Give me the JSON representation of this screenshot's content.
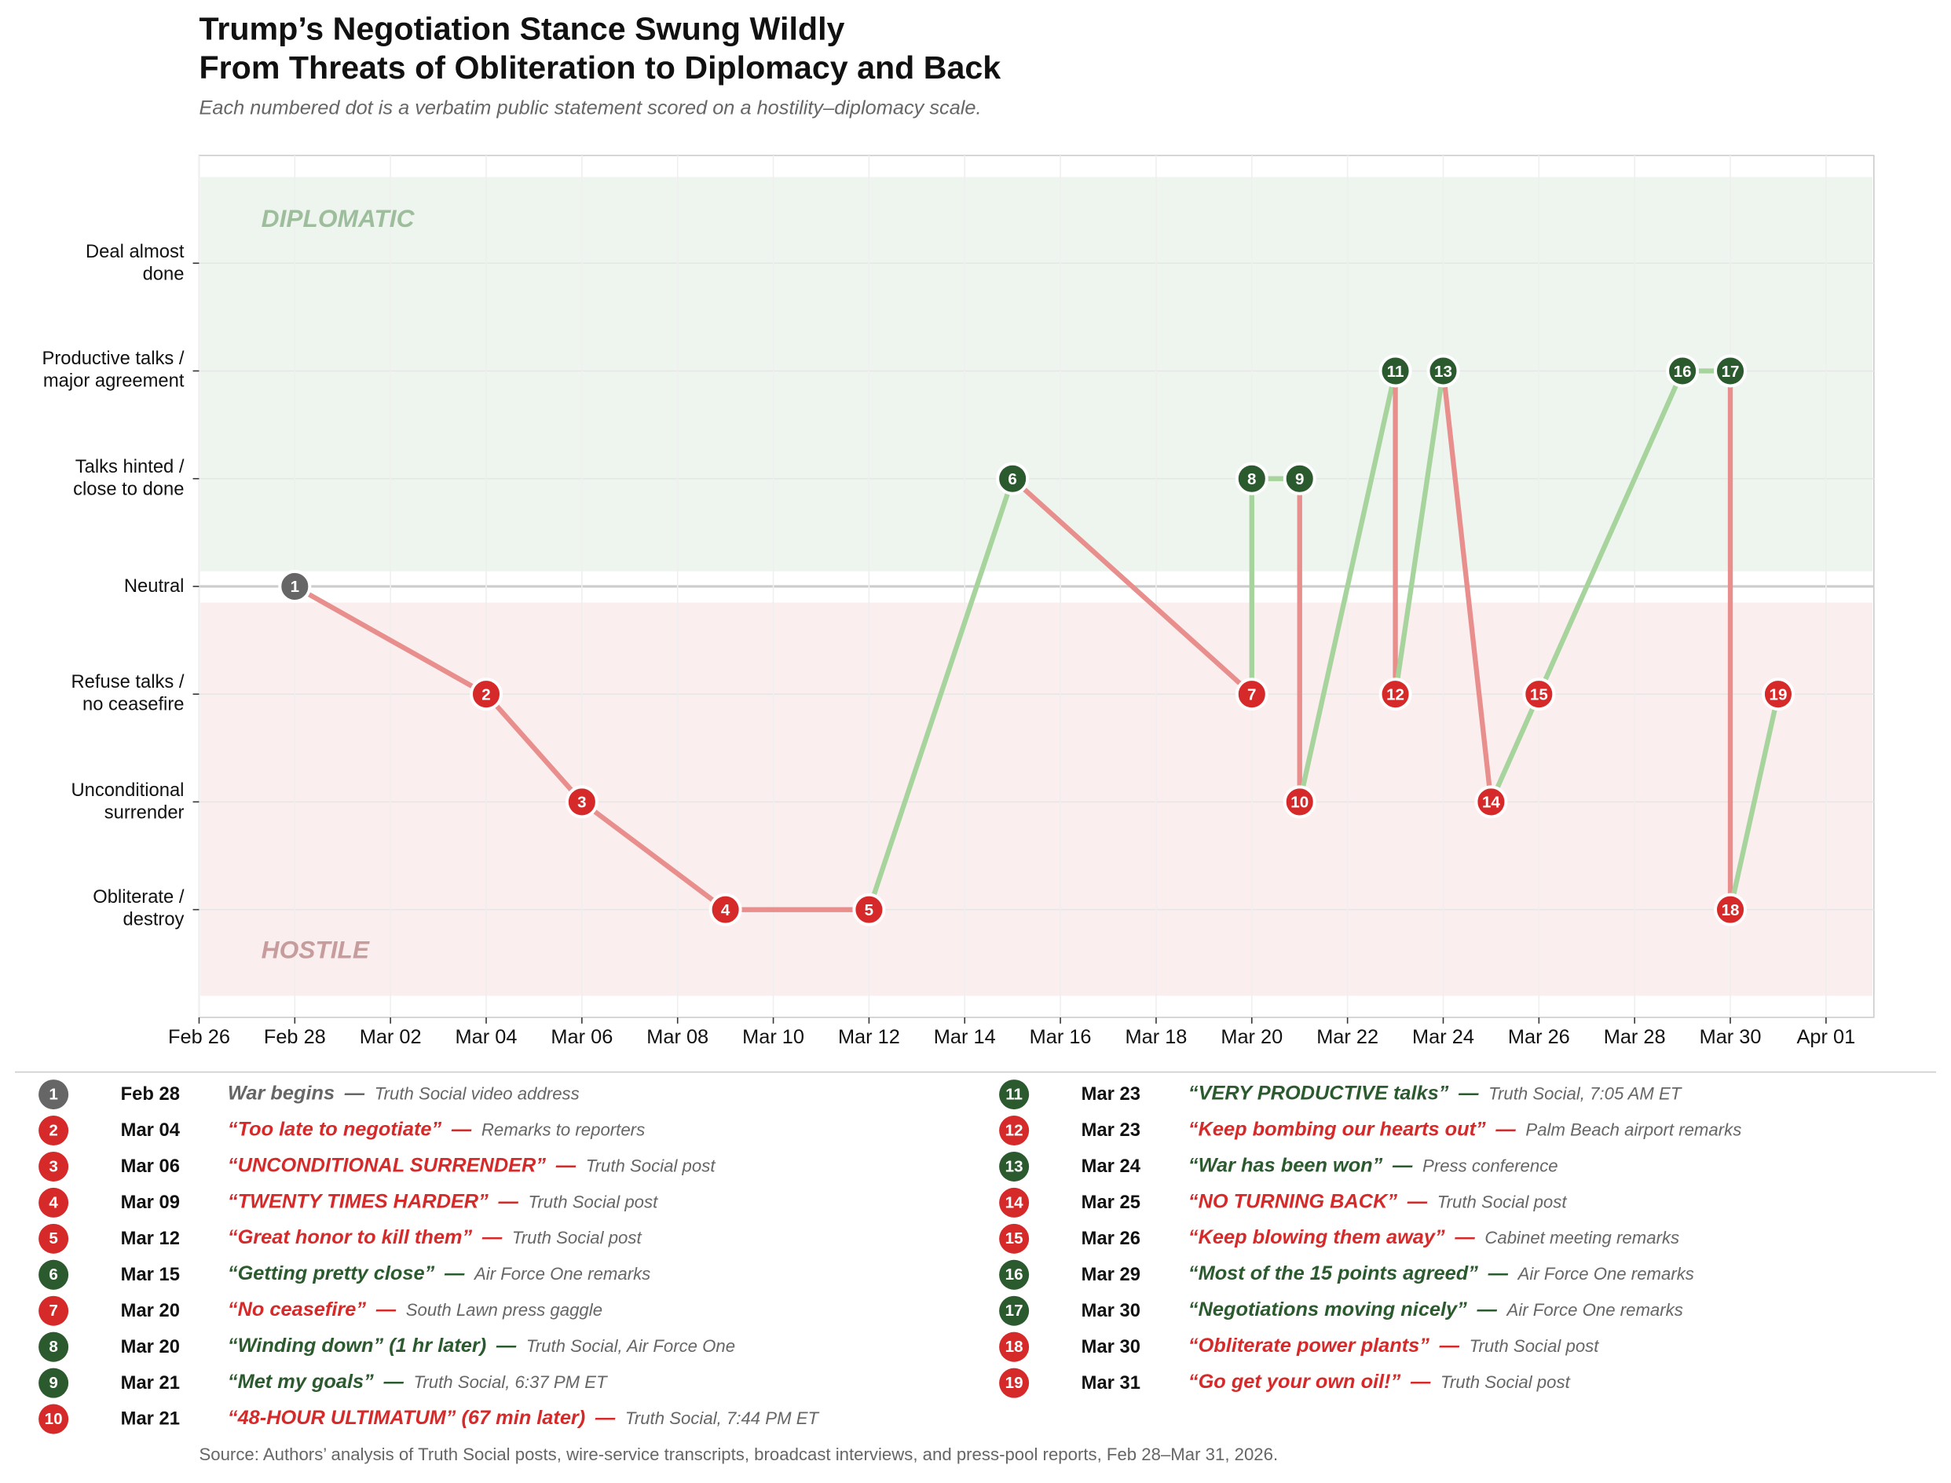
{
  "chart_data": {
    "type": "line",
    "title": "Trump’s Negotiation Stance Swung Wildly\nFrom Threats of Obliteration to Diplomacy and Back",
    "subtitle": "Each numbered dot is a verbatim public statement scored on a hostility–diplomacy scale.",
    "source": "Source: Authors’ analysis of Truth Social posts, wire-service transcripts, broadcast interviews, and press-pool reports, Feb 28–Mar 31, 2026.",
    "x": [
      "Feb 28",
      "Mar 04",
      "Mar 06",
      "Mar 09",
      "Mar 12",
      "Mar 15",
      "Mar 20",
      "Mar 20",
      "Mar 21",
      "Mar 21",
      "Mar 23",
      "Mar 23",
      "Mar 24",
      "Mar 25",
      "Mar 26",
      "Mar 29",
      "Mar 30",
      "Mar 30",
      "Mar 31"
    ],
    "values": [
      0,
      -1,
      -2,
      -3,
      -3,
      1,
      -1,
      1,
      1,
      -2,
      2,
      -1,
      2,
      -2,
      -1,
      2,
      2,
      -3,
      -1
    ],
    "labels": [
      1,
      2,
      3,
      4,
      5,
      6,
      7,
      8,
      9,
      10,
      11,
      12,
      13,
      14,
      15,
      16,
      17,
      18,
      19
    ],
    "colors": [
      "#666666",
      "#d62a2a",
      "#d62a2a",
      "#d62a2a",
      "#d62a2a",
      "#2b5a2e",
      "#d62a2a",
      "#2b5a2e",
      "#2b5a2e",
      "#d62a2a",
      "#2b5a2e",
      "#d62a2a",
      "#2b5a2e",
      "#d62a2a",
      "#d62a2a",
      "#2b5a2e",
      "#2b5a2e",
      "#d62a2a",
      "#d62a2a"
    ],
    "rise_color": "#a6d49c",
    "fall_color": "#e88e8c",
    "xlim": [
      "Feb 26",
      "Apr 02"
    ],
    "xticks": [
      "Feb 26",
      "Feb 28",
      "Mar 02",
      "Mar 04",
      "Mar 06",
      "Mar 08",
      "Mar 10",
      "Mar 12",
      "Mar 14",
      "Mar 16",
      "Mar 18",
      "Mar 20",
      "Mar 22",
      "Mar 24",
      "Mar 26",
      "Mar 28",
      "Mar 30",
      "Apr 01"
    ],
    "ylim": [
      -4,
      4
    ],
    "yticks": [
      {
        "value": -3,
        "label": "Obliterate /\ndestroy"
      },
      {
        "value": -2,
        "label": "Unconditional\nsurrender"
      },
      {
        "value": -1,
        "label": "Refuse talks /\nno ceasefire"
      },
      {
        "value": 0,
        "label": "Neutral"
      },
      {
        "value": 1,
        "label": "Talks hinted /\nclose to done"
      },
      {
        "value": 2,
        "label": "Productive talks /\nmajor agreement"
      },
      {
        "value": 3,
        "label": "Deal almost\ndone"
      }
    ],
    "grid": true,
    "bands": [
      {
        "label": "DIPLOMATIC",
        "from": 0.14,
        "to": 3.8,
        "color": "#eef5ee",
        "label_color": "#9dbd9d"
      },
      {
        "label": "HOSTILE",
        "from": -3.8,
        "to": -0.15,
        "color": "#fbeeef",
        "label_color": "#c79c9c"
      }
    ],
    "separator": "—",
    "statements": [
      {
        "quote": "War begins",
        "source": "Truth Social video address"
      },
      {
        "quote": "“Too late to negotiate”",
        "source": "Remarks to reporters"
      },
      {
        "quote": "“UNCONDITIONAL SURRENDER”",
        "source": "Truth Social post"
      },
      {
        "quote": "“TWENTY TIMES HARDER”",
        "source": "Truth Social post"
      },
      {
        "quote": "“Great honor to kill them”",
        "source": "Truth Social post"
      },
      {
        "quote": "“Getting pretty close”",
        "source": "Air Force One remarks"
      },
      {
        "quote": "“No ceasefire”",
        "source": "South Lawn press gaggle"
      },
      {
        "quote": "“Winding down” (1 hr later)",
        "source": "Truth Social, Air Force One"
      },
      {
        "quote": "“Met my goals”",
        "source": "Truth Social, 6:37 PM ET"
      },
      {
        "quote": "“48-HOUR ULTIMATUM” (67 min later)",
        "source": "Truth Social, 7:44 PM ET"
      },
      {
        "quote": "“VERY PRODUCTIVE talks”",
        "source": "Truth Social, 7:05 AM ET"
      },
      {
        "quote": "“Keep bombing our hearts out”",
        "source": "Palm Beach airport remarks"
      },
      {
        "quote": "“War has been won”",
        "source": "Press conference"
      },
      {
        "quote": "“NO TURNING BACK”",
        "source": "Truth Social post"
      },
      {
        "quote": "“Keep blowing them away”",
        "source": "Cabinet meeting remarks"
      },
      {
        "quote": "“Most of the 15 points agreed”",
        "source": "Air Force One remarks"
      },
      {
        "quote": "“Negotiations moving nicely”",
        "source": "Air Force One remarks"
      },
      {
        "quote": "“Obliterate power plants”",
        "source": "Truth Social post"
      },
      {
        "quote": "“Go get your own oil!”",
        "source": "Truth Social post"
      }
    ]
  }
}
